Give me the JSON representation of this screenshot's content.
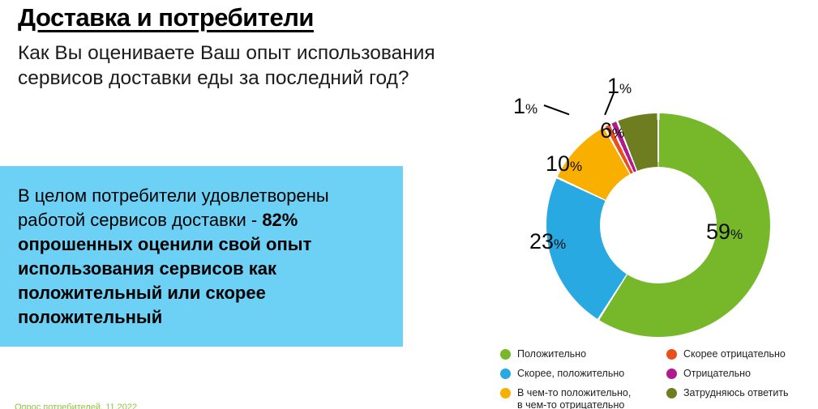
{
  "page": {
    "title": "Доставка и потребители",
    "subtitle": "Как Вы оцениваете Ваш опыт использования сервисов доставки еды за последний год?",
    "footer": "Опрос потребителей, 11.2022"
  },
  "callout": {
    "bg_color": "#6CD1F5",
    "regular": "В целом потребители удовлетворены работой сервисов доставки - ",
    "bold": "82% опрошенных оценили свой опыт использования сервисов как положительный или скорее положительный"
  },
  "chart_data": {
    "type": "pie",
    "donut": true,
    "title": "Как Вы оцениваете Ваш опыт использования сервисов доставки еды за последний год?",
    "unit": "%",
    "categories": [
      "Положительно",
      "Скорее, положительно",
      "В чем-то положительно, в чем-то отрицательно",
      "Скорее отрицательно",
      "Отрицательно",
      "Затрудняюсь ответить"
    ],
    "values": [
      59,
      23,
      10,
      1,
      1,
      6
    ],
    "colors": [
      "#76B82A",
      "#29A9E1",
      "#F9AF00",
      "#E94E1B",
      "#B11A8C",
      "#6D7D20"
    ],
    "labels": [
      "59",
      "23",
      "10",
      "1",
      "1",
      "6"
    ],
    "percent_sign": "%",
    "legend_position": "bottom-right",
    "start_angle_deg": 0,
    "direction": "clockwise"
  },
  "legend": {
    "left": [
      {
        "label": "Положительно",
        "color": "#76B82A"
      },
      {
        "label": "Скорее, положительно",
        "color": "#29A9E1"
      },
      {
        "label": "В чем-то положительно,\nв чем-то отрицательно",
        "color": "#F9AF00"
      }
    ],
    "right": [
      {
        "label": "Скорее отрицательно",
        "color": "#E94E1B"
      },
      {
        "label": "Отрицательно",
        "color": "#B11A8C"
      },
      {
        "label": "Затрудняюсь ответить",
        "color": "#6D7D20"
      }
    ]
  }
}
